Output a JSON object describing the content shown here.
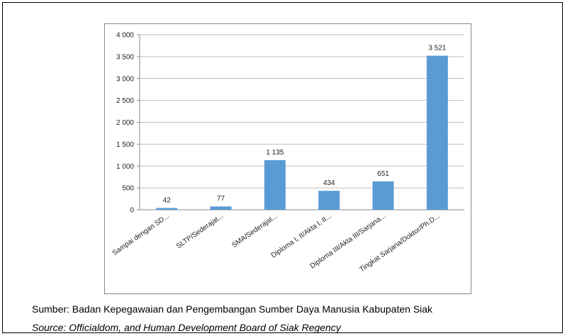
{
  "chart_data": {
    "type": "bar",
    "categories": [
      "Sampai dengan SD...",
      "SLTP/Sederajat...",
      "SMA/Sederajat...",
      "Diploma I, II/Akta I, II...",
      "Diploma III/Akta III/Sarjana...",
      "Tingkat Sarjana/Doktor/Ph.D..."
    ],
    "values": [
      42,
      77,
      1135,
      434,
      651,
      3521
    ],
    "value_labels": [
      "42",
      "77",
      "1 135",
      "434",
      "651",
      "3 521"
    ],
    "color": "#5b9bd5",
    "ylim": [
      0,
      4000
    ],
    "yticks": [
      0,
      500,
      {
        "value": 1000,
        "label": "1 000"
      },
      {
        "value": 1500,
        "label": "1 500"
      },
      {
        "value": 2000,
        "label": "2 000"
      },
      {
        "value": 2500,
        "label": "2 500"
      },
      {
        "value": 3000,
        "label": "3 000"
      },
      {
        "value": 3500,
        "label": "3 500"
      },
      {
        "value": 4000,
        "label": "4 000"
      }
    ],
    "grid": true
  },
  "source": {
    "id": "Sumber: Badan Kepegawaian dan Pengembangan Sumber Daya Manusia Kabupaten Siak",
    "en": "Source: Officialdom, and Human Development Board of Siak Regency"
  }
}
